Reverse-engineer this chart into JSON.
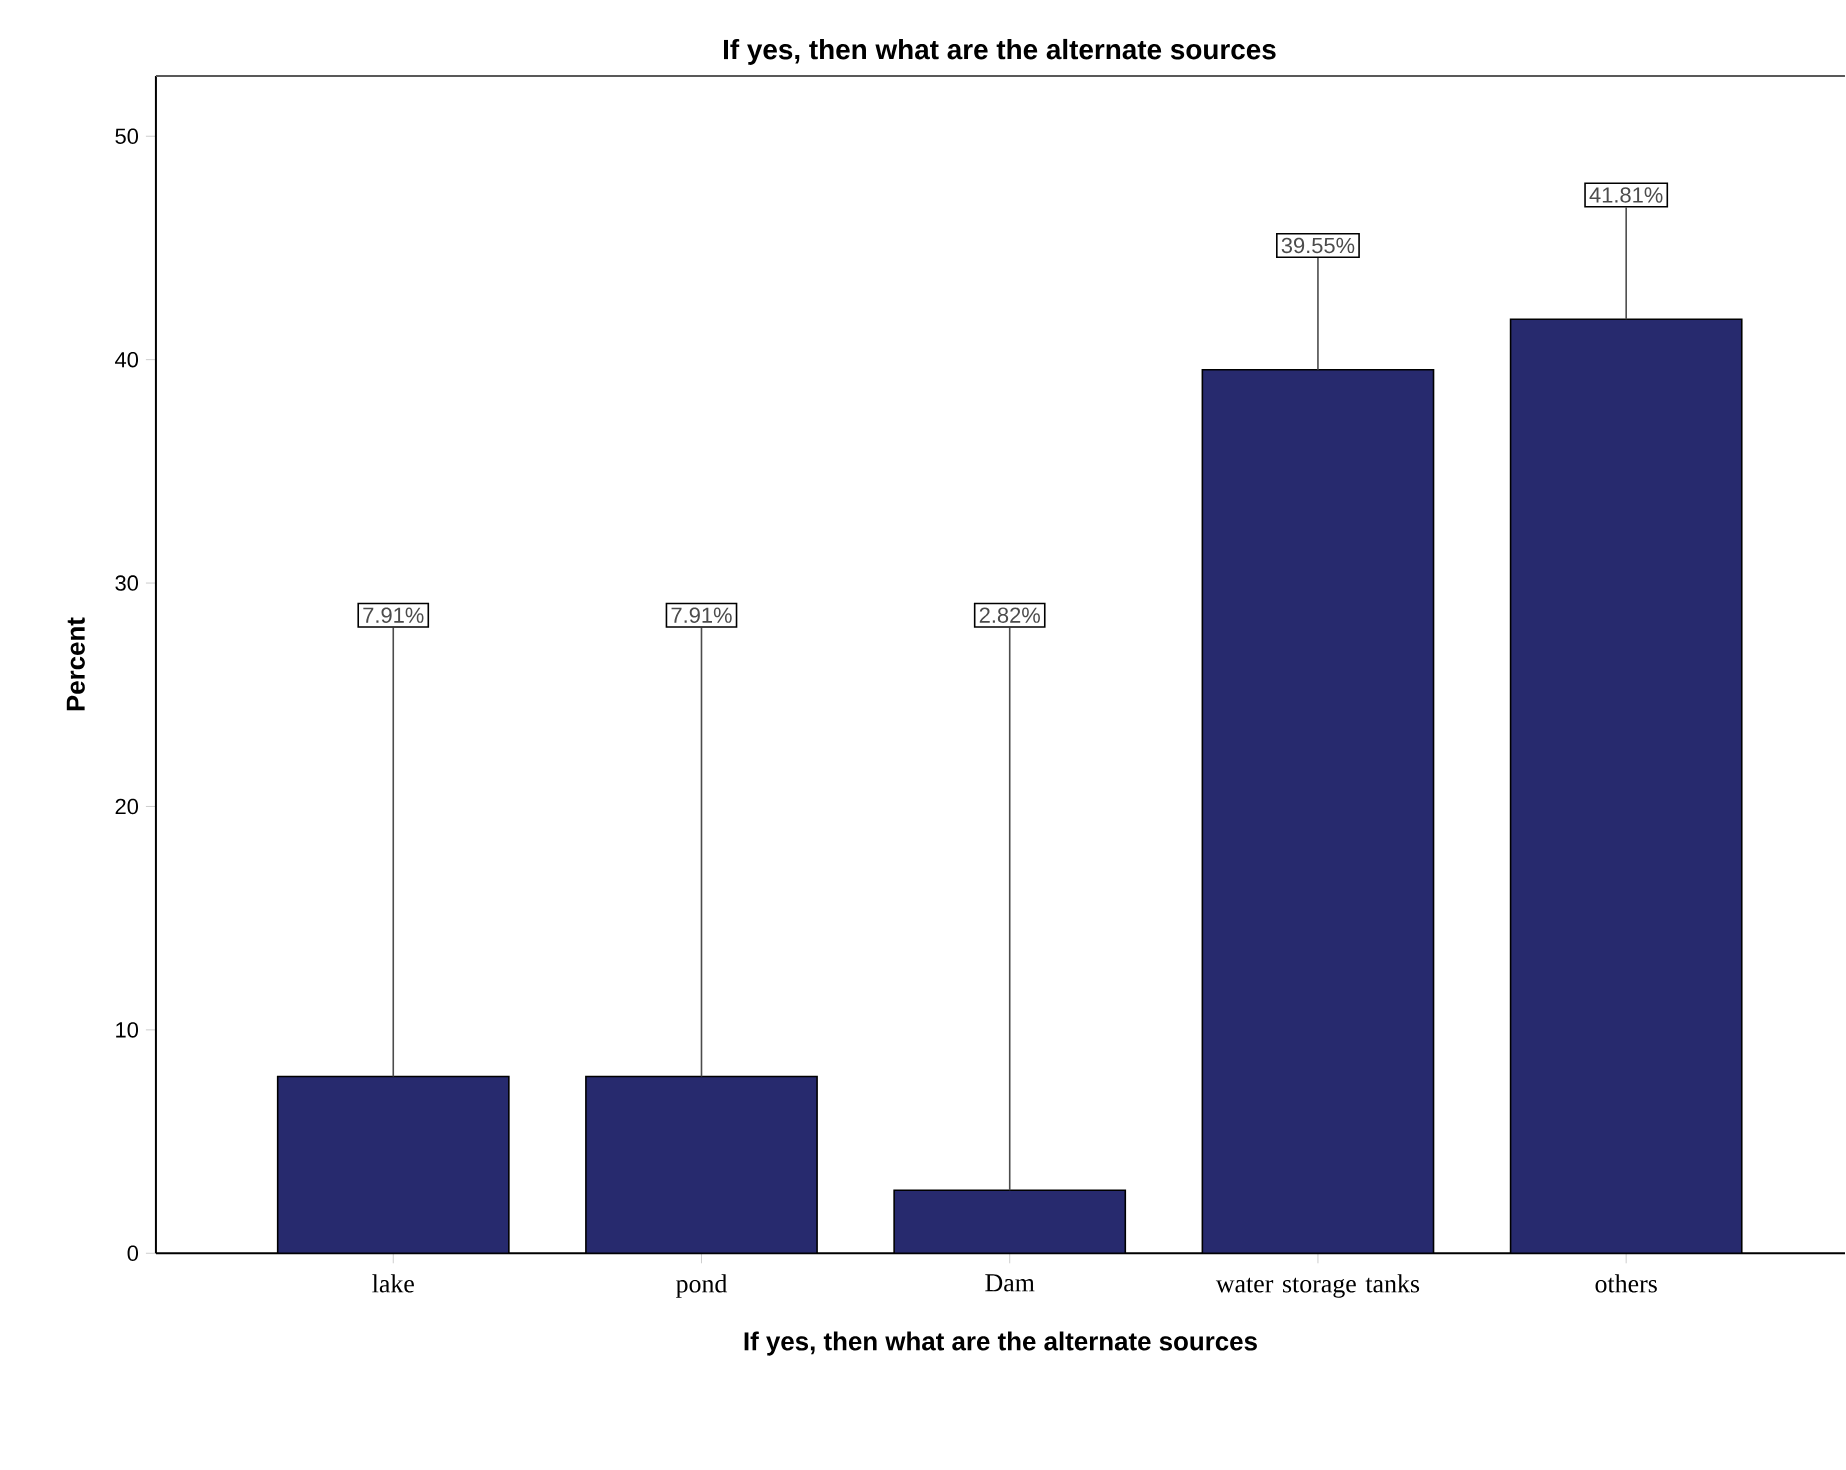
{
  "chart_data": {
    "type": "bar",
    "title": "If yes, then what are the alternate sources",
    "xlabel": "If yes, then what are the alternate sources",
    "ylabel": "Percent",
    "categories": [
      "lake",
      "pond",
      "Dam",
      "water storage tanks",
      "others"
    ],
    "values": [
      7.91,
      7.91,
      2.82,
      39.55,
      41.81
    ],
    "value_labels": [
      "7.91%",
      "7.91%",
      "2.82%",
      "39.55%",
      "41.81%"
    ],
    "color": "#272a6e",
    "ylim": [
      0,
      52.7
    ],
    "yticks": [
      0,
      10,
      20,
      30,
      40,
      50
    ]
  }
}
